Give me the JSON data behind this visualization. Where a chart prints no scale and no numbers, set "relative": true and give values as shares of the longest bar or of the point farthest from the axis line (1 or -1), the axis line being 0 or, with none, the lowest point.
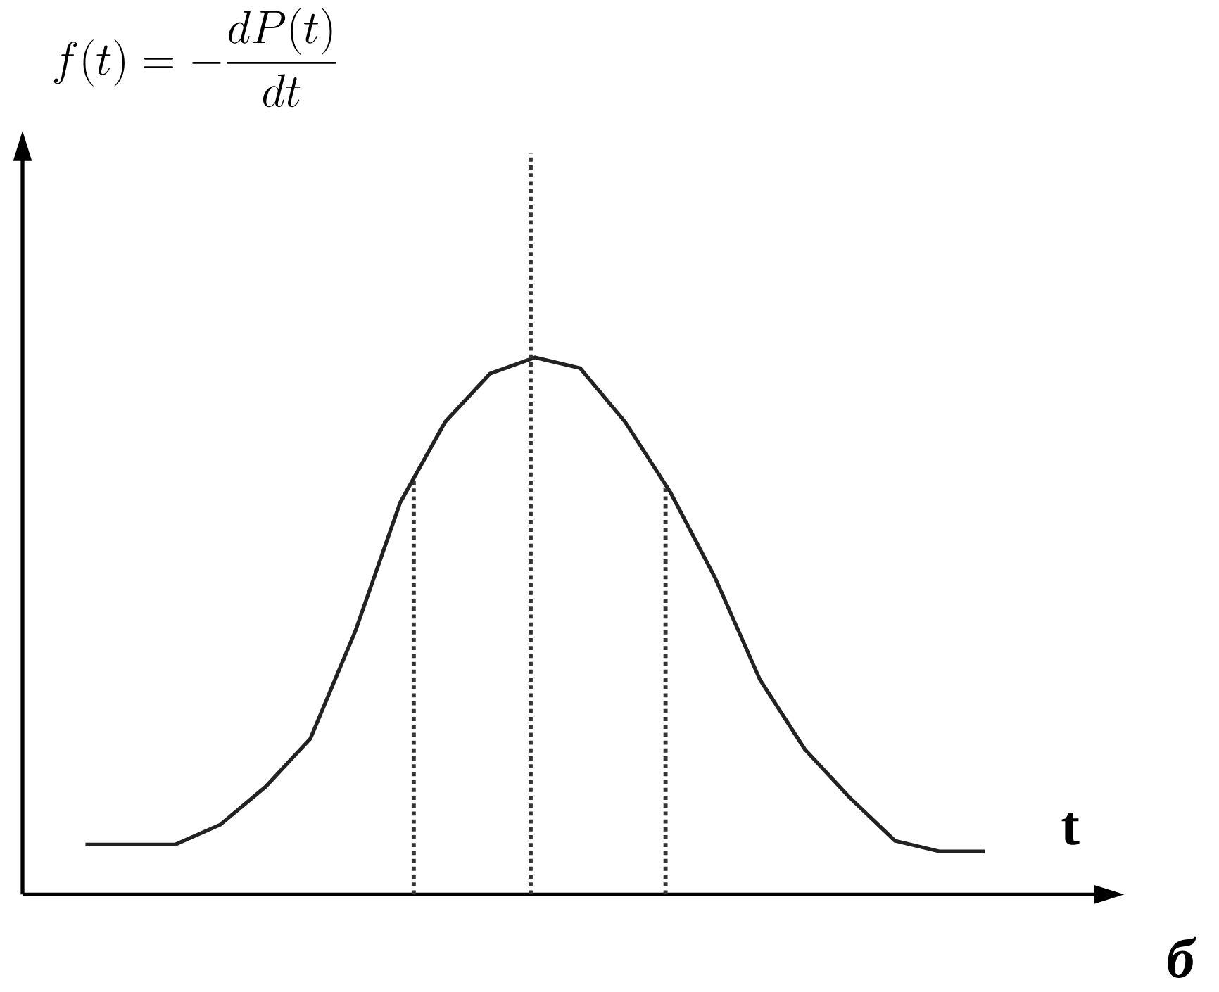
{
  "chart_data": {
    "type": "line",
    "relative": true,
    "xlabel": "t",
    "annotations": [
      "f(t) = -\\frac{dP(t)}{dt}",
      "б"
    ],
    "categories": [
      null,
      null,
      null,
      null,
      null,
      null,
      null,
      null,
      null,
      null,
      null,
      null,
      null,
      null,
      null,
      null,
      null,
      null,
      null,
      null,
      null
    ],
    "values": [
      0.093,
      0.093,
      0.093,
      0.13,
      0.2,
      0.29,
      0.49,
      0.73,
      0.88,
      0.97,
      1.0,
      0.98,
      0.88,
      0.75,
      0.59,
      0.4,
      0.27,
      0.18,
      0.1,
      0.08,
      0.08
    ],
    "color": "#222222",
    "marker": "none",
    "line_style": "solid"
  }
}
